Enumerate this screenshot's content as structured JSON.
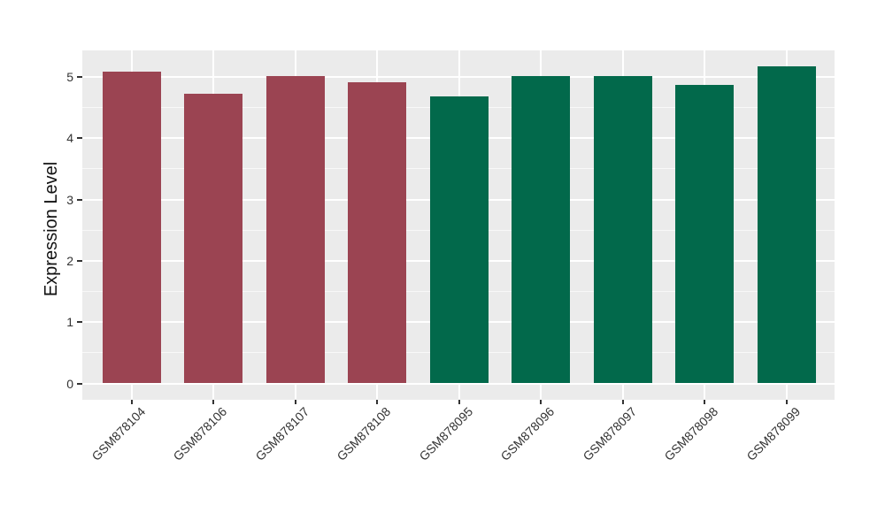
{
  "chart_data": {
    "type": "bar",
    "ylabel": "Expression Level",
    "categories": [
      "GSM878104",
      "GSM878106",
      "GSM878107",
      "GSM878108",
      "GSM878095",
      "GSM878096",
      "GSM878097",
      "GSM878098",
      "GSM878099"
    ],
    "values": [
      5.08,
      4.73,
      5.02,
      4.92,
      4.68,
      5.02,
      5.02,
      4.87,
      5.18
    ],
    "bar_colors": [
      "#9B4452",
      "#9B4452",
      "#9B4452",
      "#9B4452",
      "#02694B",
      "#02694B",
      "#02694B",
      "#02694B",
      "#02694B"
    ],
    "group_colors": {
      "left_group_red": "#9B4452",
      "right_group_green": "#02694B"
    },
    "y_ticks": [
      0,
      1,
      2,
      3,
      4,
      5
    ],
    "y_minor_ticks": [
      0.5,
      1.5,
      2.5,
      3.5,
      4.5
    ],
    "ylim": [
      -0.27,
      5.43
    ],
    "x_tick_angle": -45,
    "legend": "none",
    "grid": "horizontal major+minor, vertical major at category centers",
    "panel_bg": "#EBEBEB",
    "grid_color": "#FFFFFF",
    "axis_text_color": "#333333",
    "background": "#FFFFFF"
  }
}
